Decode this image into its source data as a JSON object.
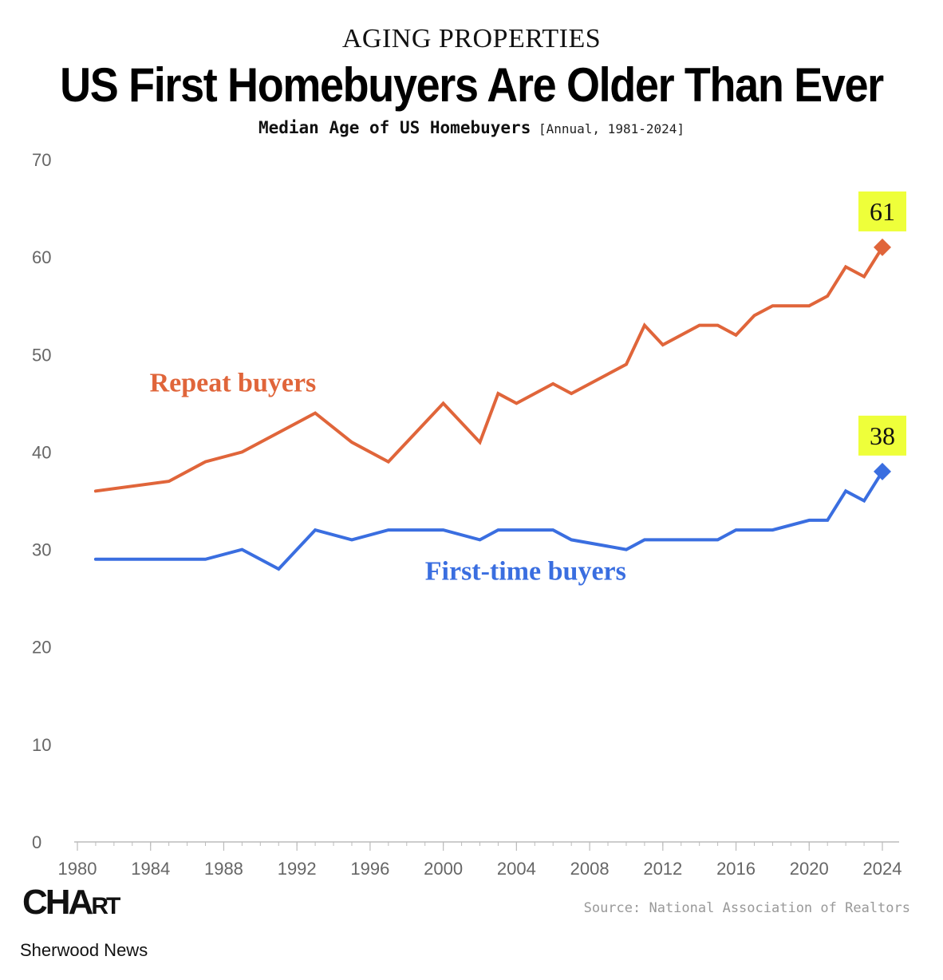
{
  "header": {
    "kicker": "AGING PROPERTIES",
    "title": "US First Homebuyers Are Older Than Ever",
    "subtitle": "Median Age of US Homebuyers",
    "subtitle_note": "[Annual, 1981-2024]"
  },
  "footer": {
    "brand_big": "CHA",
    "brand_small": "RT",
    "brand_tail": "R",
    "publisher": "Sherwood News",
    "source": "Source: National Association of Realtors"
  },
  "chart_data": {
    "type": "line",
    "xlim": [
      1980,
      2024
    ],
    "ylim": [
      0,
      70
    ],
    "xticks": [
      1980,
      1984,
      1988,
      1992,
      1996,
      2000,
      2004,
      2008,
      2012,
      2016,
      2020,
      2024
    ],
    "yticks": [
      0,
      10,
      20,
      30,
      40,
      50,
      60,
      70
    ],
    "grid": false,
    "series": [
      {
        "name": "Repeat buyers",
        "color": "#e0653a",
        "x": [
          1981,
          1985,
          1987,
          1989,
          1991,
          1993,
          1995,
          1997,
          2000,
          2002,
          2003,
          2004,
          2006,
          2007,
          2010,
          2011,
          2012,
          2014,
          2015,
          2016,
          2017,
          2018,
          2020,
          2021,
          2022,
          2023,
          2024
        ],
        "y": [
          36,
          37,
          39,
          40,
          42,
          44,
          41,
          39,
          45,
          41,
          46,
          45,
          47,
          46,
          49,
          53,
          51,
          53,
          53,
          52,
          54,
          55,
          55,
          56,
          59,
          58,
          61
        ]
      },
      {
        "name": "First-time buyers",
        "color": "#3a6ee0",
        "x": [
          1981,
          1985,
          1987,
          1989,
          1991,
          1993,
          1995,
          1997,
          2000,
          2002,
          2003,
          2004,
          2006,
          2007,
          2010,
          2011,
          2012,
          2014,
          2015,
          2016,
          2017,
          2018,
          2020,
          2021,
          2022,
          2023,
          2024
        ],
        "y": [
          29,
          29,
          29,
          30,
          28,
          32,
          31,
          32,
          32,
          31,
          32,
          32,
          32,
          31,
          30,
          31,
          31,
          31,
          31,
          32,
          32,
          32,
          33,
          33,
          36,
          35,
          38
        ]
      }
    ],
    "annotations": [
      {
        "text": "61",
        "series": "Repeat buyers",
        "x": 2024,
        "y": 61,
        "bg": "#eeff3a"
      },
      {
        "text": "38",
        "series": "First-time buyers",
        "x": 2024,
        "y": 38,
        "bg": "#eeff3a"
      }
    ]
  }
}
